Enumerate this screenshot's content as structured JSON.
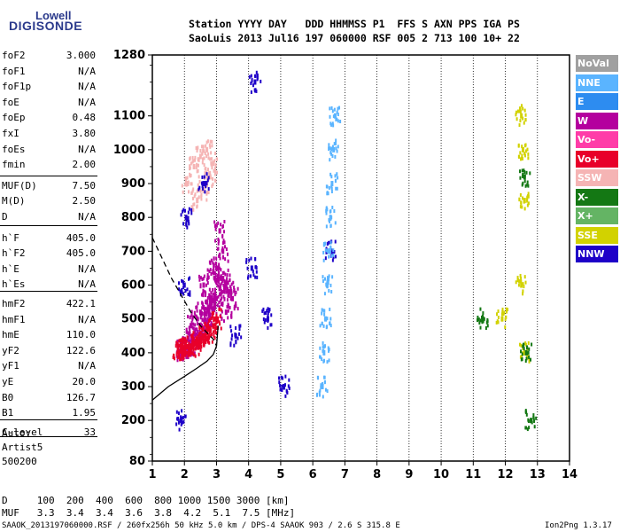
{
  "logo": {
    "line1": "Lowell",
    "line2": "DIGISONDE"
  },
  "header": {
    "row1": "Station YYYY DAY   DDD HHMMSS P1  FFS S AXN PPS IGA PS",
    "row2": "SaoLuis 2013 Jul16 197 060000 RSF 005 2 713 100 10+ 22"
  },
  "params": [
    {
      "name": "foF2",
      "value": "3.000"
    },
    {
      "name": "foF1",
      "value": "N/A"
    },
    {
      "name": "foF1p",
      "value": "N/A"
    },
    {
      "name": "foE",
      "value": "N/A"
    },
    {
      "name": "foEp",
      "value": "0.48"
    },
    {
      "name": "fxI",
      "value": "3.80"
    },
    {
      "name": "foEs",
      "value": "N/A"
    },
    {
      "name": "fmin",
      "value": "2.00"
    },
    {
      "name": "MUF(D)",
      "value": "7.50"
    },
    {
      "name": "M(D)",
      "value": "2.50"
    },
    {
      "name": "D",
      "value": "N/A"
    },
    {
      "name": "h`F",
      "value": "405.0"
    },
    {
      "name": "h`F2",
      "value": "405.0"
    },
    {
      "name": "h`E",
      "value": "N/A"
    },
    {
      "name": "h`Es",
      "value": "N/A"
    },
    {
      "name": "hmF2",
      "value": "422.1"
    },
    {
      "name": "hmF1",
      "value": "N/A"
    },
    {
      "name": "hmE",
      "value": "110.0"
    },
    {
      "name": "yF2",
      "value": "122.6"
    },
    {
      "name": "yF1",
      "value": "N/A"
    },
    {
      "name": "yE",
      "value": "20.0"
    },
    {
      "name": "B0",
      "value": "126.7"
    },
    {
      "name": "B1",
      "value": "1.95"
    },
    {
      "name": "C-level",
      "value": "33"
    }
  ],
  "auto": {
    "line1": "Auto:",
    "line2": "Artist5",
    "line3": "500200"
  },
  "legend": [
    {
      "label": "NoVal",
      "color": "#a0a0a0"
    },
    {
      "label": "NNE",
      "color": "#5ab4ff"
    },
    {
      "label": "E",
      "color": "#2d8cf0"
    },
    {
      "label": "W",
      "color": "#b4009e"
    },
    {
      "label": "Vo-",
      "color": "#ff3ca8"
    },
    {
      "label": "Vo+",
      "color": "#e8002a"
    },
    {
      "label": "SSW",
      "color": "#f5b4b4"
    },
    {
      "label": "X-",
      "color": "#147814"
    },
    {
      "label": "X+",
      "color": "#64b464"
    },
    {
      "label": "SSE",
      "color": "#d2d200"
    },
    {
      "label": "NNW",
      "color": "#1e00c8"
    }
  ],
  "footer": {
    "d_row": "D     100  200  400  600  800 1000 1500 3000 [km]",
    "muf_row": "MUF   3.3  3.4  3.4  3.6  3.8  4.2  5.1  7.5 [MHz]",
    "file_row": "SAAOK_2013197060000.RSF / 260fx256h 50 kHz 5.0 km / DPS-4 SAAOK 903 / 2.6 S 315.8 E",
    "version": "Ion2Png 1.3.17"
  },
  "chart_data": {
    "type": "scatter",
    "title": "",
    "xlabel": "",
    "ylabel": "",
    "xlim": [
      1,
      14
    ],
    "ylim": [
      80,
      1280
    ],
    "x_ticks": [
      1,
      2,
      3,
      4,
      5,
      6,
      7,
      8,
      9,
      10,
      11,
      12,
      13,
      14
    ],
    "y_ticks": [
      80,
      200,
      300,
      400,
      500,
      600,
      700,
      800,
      900,
      1000,
      1100,
      1280
    ],
    "series": [
      {
        "name": "F2 trace cluster W",
        "color": "#b4009e",
        "x": [
          1.9,
          2.0,
          2.1,
          2.2,
          2.3,
          2.4,
          2.5,
          2.6,
          2.7,
          2.8,
          2.9,
          3.0,
          3.1,
          3.2,
          3.3,
          3.4,
          3.5,
          2.2,
          2.5,
          2.8,
          3.0,
          3.2,
          2.6,
          2.9,
          3.1,
          2.4,
          2.7,
          3.3
        ],
        "y": [
          405,
          410,
          415,
          420,
          430,
          440,
          455,
          470,
          490,
          510,
          530,
          560,
          590,
          620,
          600,
          580,
          560,
          480,
          520,
          560,
          650,
          700,
          600,
          640,
          760,
          500,
          550,
          520
        ]
      },
      {
        "name": "F2 trace cluster Vo+",
        "color": "#e8002a",
        "x": [
          1.8,
          1.9,
          2.0,
          2.1,
          2.2,
          2.3,
          2.4,
          2.5,
          2.6,
          2.7,
          2.8,
          2.9,
          3.0
        ],
        "y": [
          410,
          412,
          415,
          418,
          420,
          425,
          430,
          440,
          450,
          460,
          470,
          480,
          500
        ]
      },
      {
        "name": "upper cluster SSW",
        "color": "#f5b4b4",
        "x": [
          2.1,
          2.3,
          2.5,
          2.7,
          2.9,
          2.4,
          2.6,
          2.8
        ],
        "y": [
          900,
          950,
          980,
          1000,
          960,
          850,
          880,
          920
        ]
      },
      {
        "name": "vertical trace NNW",
        "color": "#1e00c8",
        "x": [
          2.0,
          2.05,
          2.6,
          3.6,
          4.1,
          4.2,
          4.6,
          5.1,
          1.9,
          6.55
        ],
        "y": [
          600,
          800,
          900,
          450,
          650,
          1200,
          500,
          300,
          200,
          700
        ]
      },
      {
        "name": "vertical trace NNE",
        "color": "#5ab4ff",
        "x": [
          6.3,
          6.35,
          6.4,
          6.45,
          6.5,
          6.55,
          6.6,
          6.65,
          6.7
        ],
        "y": [
          300,
          400,
          500,
          600,
          700,
          800,
          900,
          1000,
          1100
        ]
      },
      {
        "name": "right side SSE",
        "color": "#d2d200",
        "x": [
          12.5,
          12.55,
          12.6,
          12.5,
          12.6,
          11.9
        ],
        "y": [
          1100,
          1000,
          850,
          600,
          400,
          500
        ]
      },
      {
        "name": "right side X-",
        "color": "#147814",
        "x": [
          12.6,
          12.65,
          11.3,
          12.8
        ],
        "y": [
          920,
          400,
          500,
          200
        ]
      }
    ],
    "curves": [
      {
        "name": "model profile solid",
        "style": "solid",
        "x": [
          1.0,
          1.5,
          2.0,
          2.4,
          2.7,
          2.9,
          3.0,
          3.05
        ],
        "y": [
          260,
          300,
          330,
          355,
          375,
          395,
          420,
          480
        ]
      },
      {
        "name": "model profile dashed",
        "style": "dashed",
        "x": [
          1.0,
          1.3,
          1.6,
          1.9,
          2.2,
          2.5,
          2.75,
          2.9,
          3.0
        ],
        "y": [
          740,
          680,
          620,
          570,
          520,
          480,
          455,
          440,
          420
        ]
      }
    ]
  }
}
